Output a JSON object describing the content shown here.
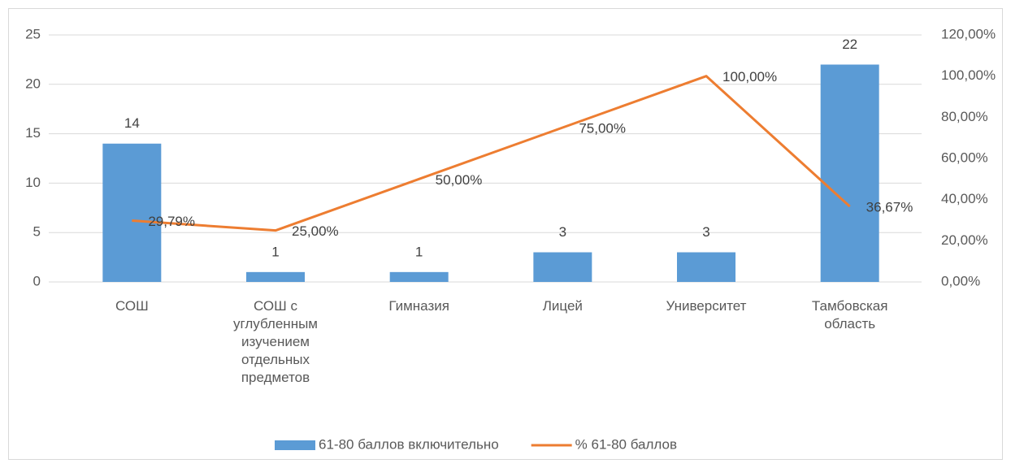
{
  "chart_data": {
    "type": "bar-line",
    "categories": [
      "СОШ",
      "СОШ с углубленным изучением отдельных предметов",
      "Гимназия",
      "Лицей",
      "Университет",
      "Тамбовская область"
    ],
    "series": [
      {
        "name": "61-80 баллов включительно",
        "type": "bar",
        "color": "#5b9bd5",
        "values": [
          14,
          1,
          1,
          3,
          3,
          22
        ]
      },
      {
        "name": "% 61-80 баллов",
        "type": "line",
        "axis": "y2",
        "color": "#ed7d31",
        "values": [
          29.79,
          25,
          50,
          75,
          100,
          36.67
        ],
        "value_labels": [
          "29,79%",
          "25,00%",
          "50,00%",
          "75,00%",
          "100,00%",
          "36,67%"
        ]
      }
    ],
    "ylim": [
      0,
      25
    ],
    "yticks": [
      0,
      5,
      10,
      15,
      20,
      25
    ],
    "y2lim": [
      0,
      120
    ],
    "y2ticks": [
      {
        "value": 0,
        "label": "0,00%"
      },
      {
        "value": 20,
        "label": "20,00%"
      },
      {
        "value": 40,
        "label": "40,00%"
      },
      {
        "value": 60,
        "label": "60,00%"
      },
      {
        "value": 80,
        "label": "80,00%"
      },
      {
        "value": 100,
        "label": "100,00%"
      },
      {
        "value": 120,
        "label": "120,00%"
      }
    ],
    "grid": true,
    "legend": "bottom"
  }
}
